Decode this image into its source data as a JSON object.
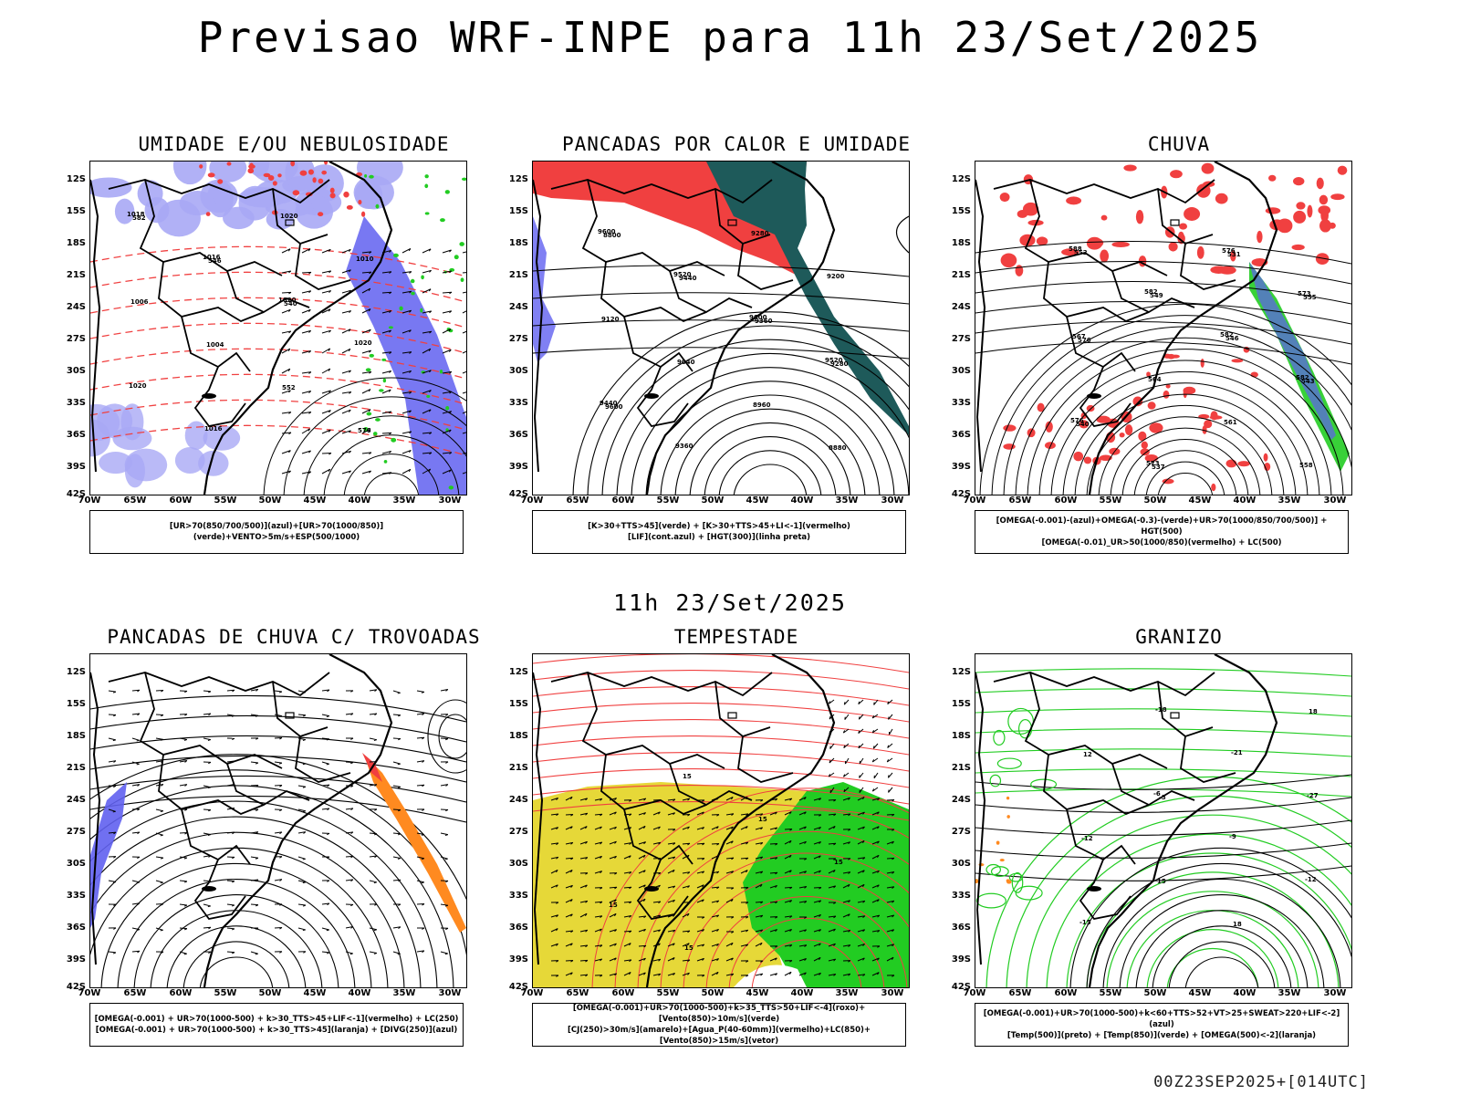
{
  "title": "Previsao WRF-INPE  para 11h 23/Set/2025",
  "mid_title": "11h 23/Set/2025",
  "footer": "00Z23SEP2025+[014UTC]",
  "axes": {
    "lat_labels": [
      "12S",
      "15S",
      "18S",
      "21S",
      "24S",
      "27S",
      "30S",
      "33S",
      "36S",
      "39S",
      "42S"
    ],
    "lon_labels": [
      "70W",
      "65W",
      "60W",
      "55W",
      "50W",
      "45W",
      "40W",
      "35W",
      "30W"
    ]
  },
  "panels": [
    {
      "title": "UMIDADE E/OU NEBULOSIDADE",
      "legend": [
        "[UR>70(850/700/500)](azul)+[UR>70(1000/850)](verde)+VENTO>5m/s+ESP(500/1000)"
      ],
      "contour_labels": [
        "1018",
        "1016",
        "1020",
        "1020",
        "1020",
        "1016",
        "1020",
        "1010",
        "1006",
        "1004",
        "552",
        "576",
        "582",
        "546",
        "540"
      ]
    },
    {
      "title": "PANCADAS POR CALOR E UMIDADE",
      "legend": [
        "[K>30+TTS>45](verde) + [K>30+TTS>45+LI<-1](vermelho)",
        "[LIF](cont.azul) + [HGT(300)](linha preta)"
      ],
      "contour_labels": [
        "9600",
        "9520",
        "9600",
        "9520",
        "9440",
        "9360",
        "9280",
        "9200",
        "9120",
        "9040",
        "8960",
        "8880",
        "8800",
        "9440",
        "9360",
        "9280",
        "9600"
      ]
    },
    {
      "title": "CHUVA",
      "legend": [
        "[OMEGA(-0.001)-(azul)+OMEGA(-0.3)-(verde)+UR>70(1000/850/700/500)] + HGT(500)",
        "[OMEGA(-0.01)_UR>50(1000/850)(vermelho) + LC(500)"
      ],
      "contour_labels": [
        "588",
        "582",
        "582",
        "582",
        "576",
        "573",
        "576",
        "573",
        "567",
        "564",
        "561",
        "558",
        "552",
        "549",
        "546",
        "543",
        "540",
        "537",
        "531",
        "555",
        "576"
      ]
    },
    {
      "title": "PANCADAS DE CHUVA C/ TROVOADAS",
      "legend": [
        "[OMEGA(-0.001) + UR>70(1000-500) + k>30_TTS>45+LIF<-1](vermelho) + LC(250)",
        "[OMEGA(-0.001) + UR>70(1000-500) + k>30_TTS>45](laranja) + [DIVG(250)](azul)"
      ],
      "contour_labels": []
    },
    {
      "title": "TEMPESTADE",
      "legend": [
        "[OMEGA(-0.001)+UR>70(1000-500)+k>35_TTS>50+LIF<-4](roxo)+[Vento(850)>10m/s](verde)",
        "[CJ(250)>30m/s](amarelo)+[Agua_P(40-60mm)](vermelho)+LC(850)+[Vento(850)>15m/s](vetor)"
      ],
      "contour_labels": [
        "15",
        "15",
        "15",
        "15",
        "15"
      ]
    },
    {
      "title": "GRANIZO",
      "legend": [
        "[OMEGA(-0.001)+UR>70(1000-500)+k<60+TTS>52+VT>25+SWEAT>220+LIF<-2](azul)",
        "[Temp(500)](preto) + [Temp(850)](verde) + [OMEGA(500)<-2](laranja)"
      ],
      "contour_labels": [
        "-6",
        "-9",
        "-12",
        "-15",
        "-18",
        "-21",
        "-27",
        "-12",
        "15",
        "18",
        "18",
        "12",
        "-3"
      ]
    }
  ],
  "colors": {
    "blue_light": "#a9a9f5",
    "blue": "#6060f0",
    "green": "#22cc22",
    "red": "#f04040",
    "dark_teal": "#1e5a5a",
    "yellow": "#e6d838",
    "orange": "#ff8a20",
    "contour": "#000000"
  }
}
